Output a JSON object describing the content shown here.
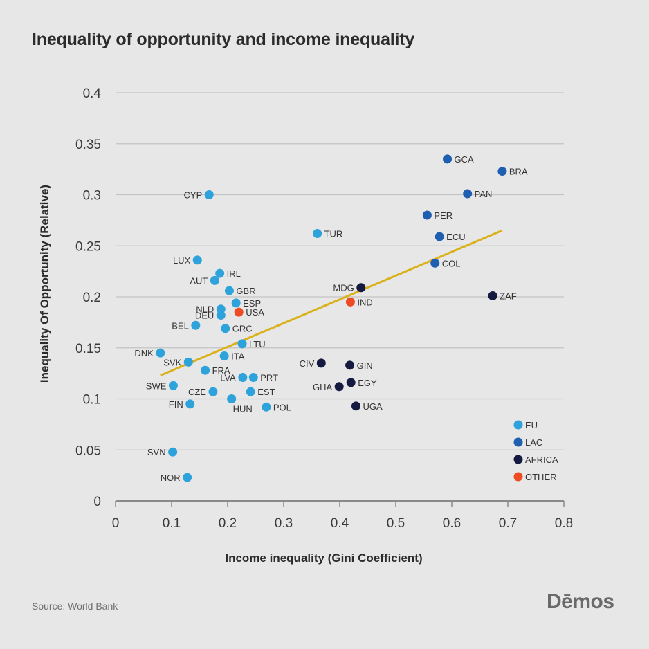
{
  "title": "Inequality of opportunity and income inequality",
  "source": "Source: World Bank",
  "logo": "Dēmos",
  "colors": {
    "EU": "#2ea3db",
    "LAC": "#1f5fb0",
    "AFRICA": "#141a40",
    "OTHER": "#ee4b24",
    "trend": "#d9b21b",
    "grid": "#c4c4c4",
    "axis": "#8a8a8a"
  },
  "chart_data": {
    "type": "scatter",
    "title": "Inequality of opportunity and income inequality",
    "xlabel": "Income inequality (Gini Coefficient)",
    "ylabel": "Inequality Of Opportunity (Relative)",
    "xlim": [
      0,
      0.8
    ],
    "ylim": [
      0,
      0.4
    ],
    "x_ticks": [
      "0",
      "0.1",
      "0.2",
      "0.3",
      "0.4",
      "0.5",
      "0.6",
      "0.7",
      "0.8"
    ],
    "y_ticks": [
      "0",
      "0.05",
      "0.1",
      "0.15",
      "0.2",
      "0.25",
      "0.3",
      "0.35",
      "0.4"
    ],
    "grid": "horizontal",
    "legend_position": "bottom-right",
    "legend": [
      {
        "name": "EU",
        "group": "EU"
      },
      {
        "name": "LAC",
        "group": "LAC"
      },
      {
        "name": "AFRICA",
        "group": "AFRICA"
      },
      {
        "name": "OTHER",
        "group": "OTHER"
      }
    ],
    "trendline": {
      "x": [
        0.08,
        0.69
      ],
      "y": [
        0.123,
        0.265
      ]
    },
    "points": [
      {
        "label": "GCA",
        "x": 0.592,
        "y": 0.335,
        "group": "LAC",
        "pos": "right"
      },
      {
        "label": "BRA",
        "x": 0.69,
        "y": 0.323,
        "group": "LAC",
        "pos": "right"
      },
      {
        "label": "PAN",
        "x": 0.628,
        "y": 0.301,
        "group": "LAC",
        "pos": "right"
      },
      {
        "label": "PER",
        "x": 0.556,
        "y": 0.28,
        "group": "LAC",
        "pos": "right"
      },
      {
        "label": "ECU",
        "x": 0.578,
        "y": 0.259,
        "group": "LAC",
        "pos": "right"
      },
      {
        "label": "COL",
        "x": 0.57,
        "y": 0.233,
        "group": "LAC",
        "pos": "right"
      },
      {
        "label": "CYP",
        "x": 0.167,
        "y": 0.3,
        "group": "EU",
        "pos": "left"
      },
      {
        "label": "TUR",
        "x": 0.36,
        "y": 0.262,
        "group": "EU",
        "pos": "right"
      },
      {
        "label": "LUX",
        "x": 0.146,
        "y": 0.236,
        "group": "EU",
        "pos": "left"
      },
      {
        "label": "IRL",
        "x": 0.186,
        "y": 0.223,
        "group": "EU",
        "pos": "right"
      },
      {
        "label": "AUT",
        "x": 0.177,
        "y": 0.216,
        "group": "EU",
        "pos": "left"
      },
      {
        "label": "GBR",
        "x": 0.203,
        "y": 0.206,
        "group": "EU",
        "pos": "right"
      },
      {
        "label": "ESP",
        "x": 0.215,
        "y": 0.194,
        "group": "EU",
        "pos": "right"
      },
      {
        "label": "NLD",
        "x": 0.188,
        "y": 0.188,
        "group": "EU",
        "pos": "left"
      },
      {
        "label": "DEU",
        "x": 0.188,
        "y": 0.182,
        "group": "EU",
        "pos": "left"
      },
      {
        "label": "BEL",
        "x": 0.143,
        "y": 0.172,
        "group": "EU",
        "pos": "left"
      },
      {
        "label": "GRC",
        "x": 0.196,
        "y": 0.169,
        "group": "EU",
        "pos": "right"
      },
      {
        "label": "LTU",
        "x": 0.226,
        "y": 0.154,
        "group": "EU",
        "pos": "right"
      },
      {
        "label": "DNK",
        "x": 0.08,
        "y": 0.145,
        "group": "EU",
        "pos": "left"
      },
      {
        "label": "ITA",
        "x": 0.194,
        "y": 0.142,
        "group": "EU",
        "pos": "right"
      },
      {
        "label": "SVK",
        "x": 0.13,
        "y": 0.136,
        "group": "EU",
        "pos": "left"
      },
      {
        "label": "FRA",
        "x": 0.16,
        "y": 0.128,
        "group": "EU",
        "pos": "right"
      },
      {
        "label": "LVA",
        "x": 0.227,
        "y": 0.121,
        "group": "EU",
        "pos": "left"
      },
      {
        "label": "PRT",
        "x": 0.246,
        "y": 0.121,
        "group": "EU",
        "pos": "right"
      },
      {
        "label": "SWE",
        "x": 0.103,
        "y": 0.113,
        "group": "EU",
        "pos": "left"
      },
      {
        "label": "CZE",
        "x": 0.174,
        "y": 0.107,
        "group": "EU",
        "pos": "left"
      },
      {
        "label": "EST",
        "x": 0.241,
        "y": 0.107,
        "group": "EU",
        "pos": "right"
      },
      {
        "label": "HUN",
        "x": 0.207,
        "y": 0.1,
        "group": "EU",
        "pos": "below-right"
      },
      {
        "label": "FIN",
        "x": 0.133,
        "y": 0.095,
        "group": "EU",
        "pos": "left"
      },
      {
        "label": "POL",
        "x": 0.269,
        "y": 0.092,
        "group": "EU",
        "pos": "right"
      },
      {
        "label": "SVN",
        "x": 0.102,
        "y": 0.048,
        "group": "EU",
        "pos": "left"
      },
      {
        "label": "NOR",
        "x": 0.128,
        "y": 0.023,
        "group": "EU",
        "pos": "left"
      },
      {
        "label": "MDG",
        "x": 0.438,
        "y": 0.209,
        "group": "AFRICA",
        "pos": "left"
      },
      {
        "label": "ZAF",
        "x": 0.673,
        "y": 0.201,
        "group": "AFRICA",
        "pos": "right"
      },
      {
        "label": "CIV",
        "x": 0.367,
        "y": 0.135,
        "group": "AFRICA",
        "pos": "left"
      },
      {
        "label": "GIN",
        "x": 0.418,
        "y": 0.133,
        "group": "AFRICA",
        "pos": "right"
      },
      {
        "label": "EGY",
        "x": 0.42,
        "y": 0.116,
        "group": "AFRICA",
        "pos": "right"
      },
      {
        "label": "GHA",
        "x": 0.399,
        "y": 0.112,
        "group": "AFRICA",
        "pos": "left"
      },
      {
        "label": "UGA",
        "x": 0.429,
        "y": 0.093,
        "group": "AFRICA",
        "pos": "right"
      },
      {
        "label": "USA",
        "x": 0.22,
        "y": 0.185,
        "group": "OTHER",
        "pos": "right"
      },
      {
        "label": "IND",
        "x": 0.419,
        "y": 0.195,
        "group": "OTHER",
        "pos": "right"
      }
    ]
  }
}
